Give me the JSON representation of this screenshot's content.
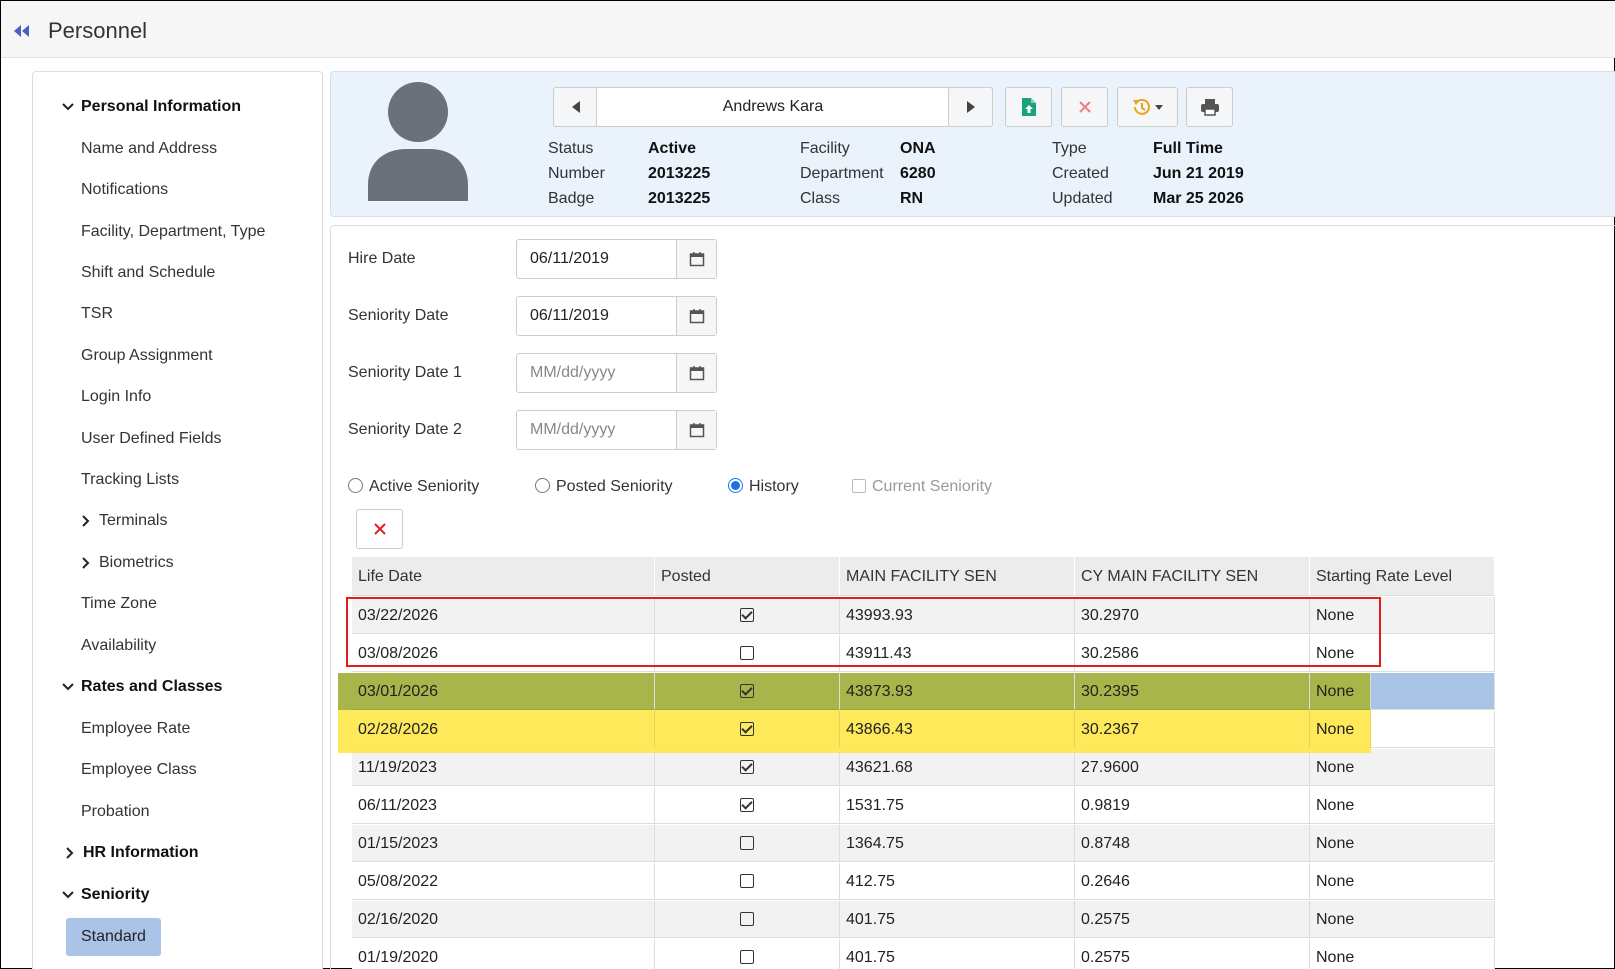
{
  "header": {
    "title": "Personnel"
  },
  "sidebar": {
    "sections": [
      {
        "label": "Personal Information",
        "expanded": true
      },
      {
        "label": "Rates and Classes",
        "expanded": true
      },
      {
        "label": "HR Information",
        "expanded": false
      },
      {
        "label": "Seniority",
        "expanded": true
      }
    ],
    "personal_items": [
      "Name and Address",
      "Notifications",
      "Facility, Department, Type",
      "Shift and Schedule",
      "TSR",
      "Group Assignment",
      "Login Info",
      "User Defined Fields",
      "Tracking Lists",
      "Terminals",
      "Biometrics",
      "Time Zone",
      "Availability"
    ],
    "rates_items": [
      "Employee Rate",
      "Employee Class",
      "Probation"
    ],
    "seniority_items": [
      "Standard"
    ],
    "active_item": "Standard"
  },
  "profile": {
    "name": "Andrews Kara",
    "fields": {
      "status_label": "Status",
      "status_value": "Active",
      "number_label": "Number",
      "number_value": "2013225",
      "badge_label": "Badge",
      "badge_value": "2013225",
      "facility_label": "Facility",
      "facility_value": "ONA",
      "department_label": "Department",
      "department_value": "6280",
      "class_label": "Class",
      "class_value": "RN",
      "type_label": "Type",
      "type_value": "Full Time",
      "created_label": "Created",
      "created_value": "Jun 21 2019",
      "updated_label": "Updated",
      "updated_value": "Mar 25 2026"
    }
  },
  "form": {
    "hire_date_label": "Hire Date",
    "hire_date_value": "06/11/2019",
    "seniority_date_label": "Seniority Date",
    "seniority_date_value": "06/11/2019",
    "seniority_date1_label": "Seniority Date 1",
    "seniority_date1_placeholder": "MM/dd/yyyy",
    "seniority_date2_label": "Seniority Date 2",
    "seniority_date2_placeholder": "MM/dd/yyyy",
    "options": {
      "active_seniority": "Active Seniority",
      "posted_seniority": "Posted Seniority",
      "history": "History",
      "current_seniority": "Current Seniority",
      "selected": "History"
    }
  },
  "table": {
    "columns": [
      "Life Date",
      "Posted",
      "MAIN FACILITY SEN",
      "CY MAIN FACILITY SEN",
      "Starting Rate Level"
    ],
    "rows": [
      {
        "date": "03/22/2026",
        "posted": true,
        "main": "43993.93",
        "cy": "30.2970",
        "rate": "None"
      },
      {
        "date": "03/08/2026",
        "posted": false,
        "main": "43911.43",
        "cy": "30.2586",
        "rate": "None"
      },
      {
        "date": "03/01/2026",
        "posted": true,
        "main": "43873.93",
        "cy": "30.2395",
        "rate": "None"
      },
      {
        "date": "02/28/2026",
        "posted": true,
        "main": "43866.43",
        "cy": "30.2367",
        "rate": "None"
      },
      {
        "date": "11/19/2023",
        "posted": true,
        "main": "43621.68",
        "cy": "27.9600",
        "rate": "None"
      },
      {
        "date": "06/11/2023",
        "posted": true,
        "main": "1531.75",
        "cy": "0.9819",
        "rate": "None"
      },
      {
        "date": "01/15/2023",
        "posted": false,
        "main": "1364.75",
        "cy": "0.8748",
        "rate": "None"
      },
      {
        "date": "05/08/2022",
        "posted": false,
        "main": "412.75",
        "cy": "0.2646",
        "rate": "None"
      },
      {
        "date": "02/16/2020",
        "posted": false,
        "main": "401.75",
        "cy": "0.2575",
        "rate": "None"
      },
      {
        "date": "01/19/2020",
        "posted": false,
        "main": "401.75",
        "cy": "0.2575",
        "rate": "None"
      }
    ],
    "selected_row": "03/01/2026"
  },
  "colors": {
    "highlight_yellow": "#fde74c",
    "highlight_olive": "#a8b54a",
    "selected_row_blue": "#a9c4e6",
    "annotation_red": "#e31b23",
    "accent_blue": "#1a73e8"
  }
}
